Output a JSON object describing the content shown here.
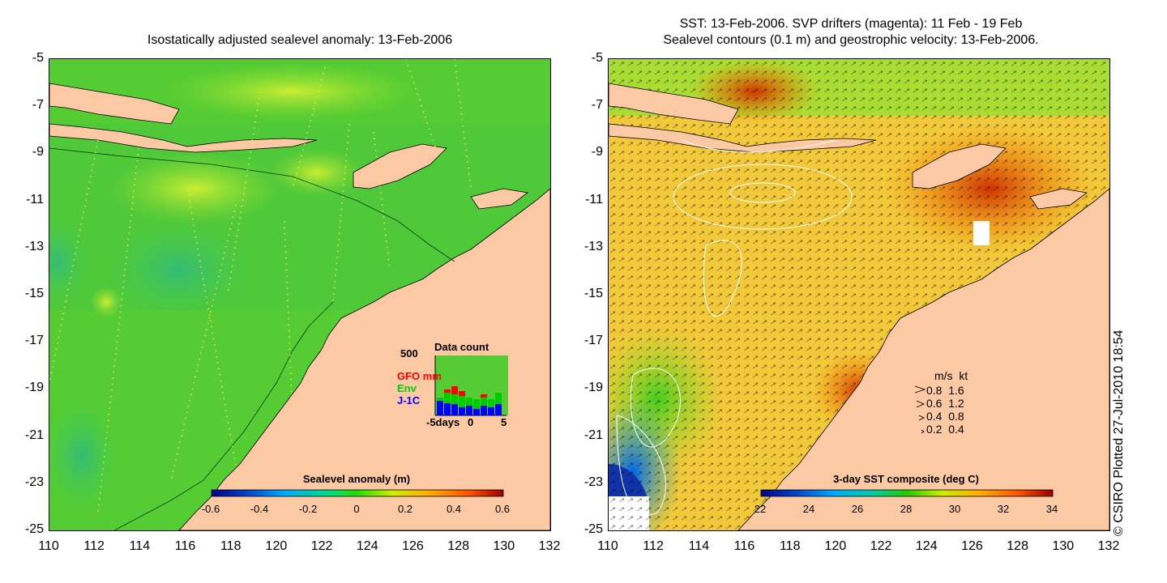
{
  "left_panel": {
    "title": "Isostatically adjusted sealevel anomaly: 13-Feb-2006",
    "colorbar": {
      "label": "Sealevel anomaly (m)",
      "ticks": [
        "-0.6",
        "-0.4",
        "-0.2",
        "0",
        "0.2",
        "0.4",
        "0.6"
      ]
    },
    "data_count": {
      "title": "Data count",
      "ymax_label": "500",
      "series_labels": [
        {
          "name": "GFO mm",
          "color": "#ff0000"
        },
        {
          "name": "Env",
          "color": "#00cc00"
        },
        {
          "name": "J-1C",
          "color": "#0000ff"
        }
      ],
      "xlabels": [
        "-5days",
        "0",
        "5"
      ]
    }
  },
  "right_panel": {
    "title_line1": "SST: 13-Feb-2006. SVP drifters (magenta): 11 Feb - 19 Feb",
    "title_line2": "Sealevel contours (0.1 m) and geostrophic velocity: 13-Feb-2006.",
    "colorbar": {
      "label": "3-day SST composite (deg C)",
      "ticks": [
        "22",
        "24",
        "26",
        "28",
        "30",
        "32",
        "34"
      ]
    },
    "velocity_scale": {
      "header": "m/s  kt",
      "rows": [
        {
          "ms": "0.8",
          "kt": "1.6"
        },
        {
          "ms": "0.6",
          "kt": "1.2"
        },
        {
          "ms": "0.4",
          "kt": "0.8"
        },
        {
          "ms": "0.2",
          "kt": "0.4"
        }
      ]
    }
  },
  "axes": {
    "lat_ticks": [
      "-5",
      "-7",
      "-9",
      "-11",
      "-13",
      "-15",
      "-17",
      "-19",
      "-21",
      "-23",
      "-25"
    ],
    "lon_ticks": [
      "110",
      "112",
      "114",
      "116",
      "118",
      "120",
      "122",
      "124",
      "126",
      "128",
      "130",
      "132"
    ]
  },
  "credit": "© CSIRO Plotted 27-Jul-2010 18:54",
  "colors": {
    "land": "#fbc9a3",
    "sla_ramp": [
      "#00008b",
      "#0044cc",
      "#00aaff",
      "#00dd88",
      "#22dd00",
      "#ccee00",
      "#ffaa00",
      "#ff5500",
      "#a00000"
    ],
    "sst_ramp": [
      "#00008b",
      "#0044cc",
      "#00aaff",
      "#00ccaa",
      "#22cc00",
      "#ccee00",
      "#ffaa00",
      "#ff5500",
      "#a00000"
    ]
  }
}
